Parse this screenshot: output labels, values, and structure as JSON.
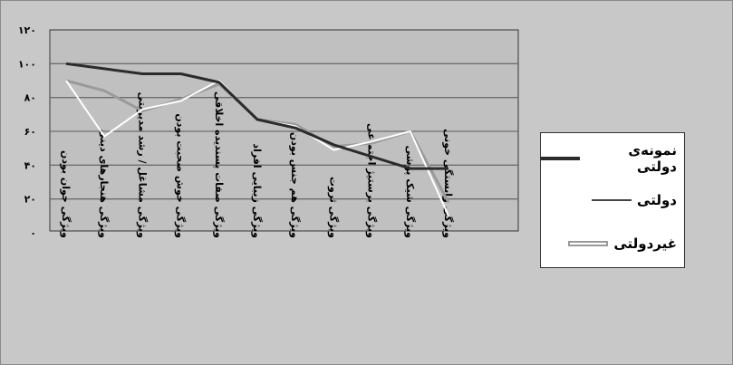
{
  "chart_data": {
    "type": "line",
    "title": "",
    "xlabel": "",
    "ylabel": "",
    "ylim": [
      0,
      120
    ],
    "yticks": [
      "۰",
      "۲۰",
      "۴۰",
      "۶۰",
      "۸۰",
      "۱۰۰",
      "۱۲۰"
    ],
    "yticks_values": [
      0,
      20,
      40,
      60,
      80,
      100,
      120
    ],
    "grid": true,
    "legend_position": "right",
    "categories": [
      "ویژگی جوان بودن",
      "ویژگی هنجارهای دینی",
      "ویژگی مشاغل / رشد مدیریتی",
      "ویژگی خوش صحبت بودن",
      "ویژگی صفات پسندیده اخلاقی",
      "ویژگی زیبایی افراد",
      "ویژگی هم جنس بودن",
      "ویژگی ثروت",
      "ویژگی برستیژ اجتماعی",
      "ویژگی شیک پوشی",
      "ویژگی وابستگی خونی"
    ],
    "series": [
      {
        "name": "نمونه‌ی دولتی",
        "color": "#2b2b2b",
        "values": [
          100,
          97,
          94,
          94,
          89,
          67,
          62,
          52,
          45,
          38,
          38
        ]
      },
      {
        "name": "دولتی",
        "color": "#ffffff",
        "values": [
          90,
          57,
          73,
          78,
          90,
          67,
          63,
          49,
          54,
          60,
          10
        ]
      },
      {
        "name": "غیردولتی",
        "color": "#9a9a9a",
        "values": [
          90,
          84,
          72,
          79,
          88,
          67,
          64,
          51,
          53,
          60,
          18
        ]
      }
    ]
  }
}
